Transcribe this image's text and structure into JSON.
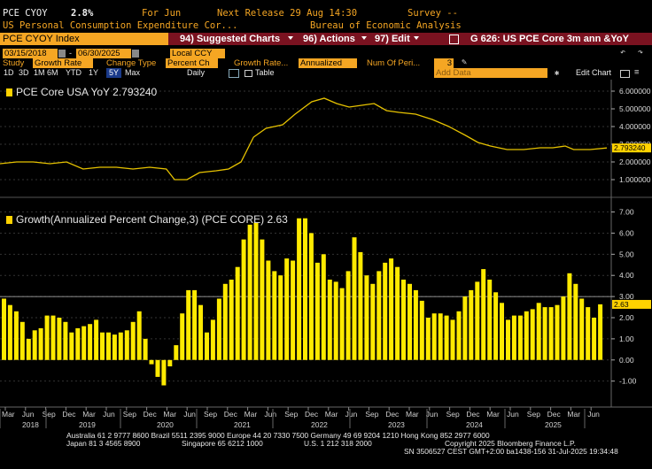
{
  "header": {
    "ticker": "PCE CYOY",
    "value": "2.8%",
    "period": "For Jun",
    "next_release": "Next Release 29 Aug 14:30",
    "survey": "Survey --",
    "description": "US Personal Consumption Expenditure Cor...",
    "source": "Bureau of Economic Analysis"
  },
  "titlebar": {
    "security": "PCE CYOY Index",
    "suggested": "94) Suggested Charts",
    "actions": "96) Actions",
    "edit": "97) Edit",
    "window_title": "G 626: US PCE Core 3m ann &YoY"
  },
  "controls": {
    "start_date": "03/15/2018",
    "end_date": "06/30/2025",
    "currency": "Local CCY",
    "study_label": "Study",
    "study_value": "Growth Rate",
    "change_type_label": "Change Type",
    "change_type_value": "Percent Ch",
    "growth_label": "Growth Rate...",
    "growth_value": "Annualized",
    "num_periods_label": "Num Of Peri...",
    "num_periods_value": "3",
    "ranges": [
      "1D",
      "3D",
      "1M",
      "6M",
      "YTD",
      "1Y",
      "5Y",
      "Max"
    ],
    "selected_range": "5Y",
    "frequency": "Daily",
    "table_label": "Table",
    "add_data": "Add Data",
    "edit_chart": "Edit Chart"
  },
  "colors": {
    "accent": "#f5a623",
    "series": "#ffd200",
    "titlebar": "#7a1220"
  },
  "chart_data": [
    {
      "type": "line",
      "legend": "PCE Core USA YoY 2.793240",
      "last_value_label": "2.793240",
      "y_ticks": [
        "6.000000",
        "5.000000",
        "4.000000",
        "3.000000",
        "2.000000",
        "1.000000"
      ],
      "ylim": [
        0.4,
        6.4
      ],
      "x_start": 2018.2,
      "x_end": 2025.5,
      "points": [
        [
          2018.2,
          1.9
        ],
        [
          2018.4,
          2.0
        ],
        [
          2018.6,
          2.0
        ],
        [
          2018.8,
          1.9
        ],
        [
          2019.0,
          2.0
        ],
        [
          2019.2,
          1.6
        ],
        [
          2019.4,
          1.7
        ],
        [
          2019.6,
          1.7
        ],
        [
          2019.8,
          1.6
        ],
        [
          2020.0,
          1.7
        ],
        [
          2020.2,
          1.6
        ],
        [
          2020.3,
          1.0
        ],
        [
          2020.45,
          1.0
        ],
        [
          2020.6,
          1.4
        ],
        [
          2020.8,
          1.5
        ],
        [
          2020.95,
          1.6
        ],
        [
          2021.1,
          2.0
        ],
        [
          2021.25,
          3.4
        ],
        [
          2021.4,
          3.9
        ],
        [
          2021.6,
          4.1
        ],
        [
          2021.75,
          4.7
        ],
        [
          2021.95,
          5.4
        ],
        [
          2022.1,
          5.6
        ],
        [
          2022.25,
          5.3
        ],
        [
          2022.4,
          5.1
        ],
        [
          2022.55,
          5.2
        ],
        [
          2022.7,
          5.3
        ],
        [
          2022.85,
          4.9
        ],
        [
          2023.0,
          4.8
        ],
        [
          2023.2,
          4.7
        ],
        [
          2023.4,
          4.4
        ],
        [
          2023.6,
          4.0
        ],
        [
          2023.8,
          3.5
        ],
        [
          2023.95,
          3.1
        ],
        [
          2024.1,
          2.9
        ],
        [
          2024.3,
          2.7
        ],
        [
          2024.5,
          2.7
        ],
        [
          2024.7,
          2.8
        ],
        [
          2024.85,
          2.8
        ],
        [
          2025.0,
          2.9
        ],
        [
          2025.1,
          2.7
        ],
        [
          2025.3,
          2.7
        ],
        [
          2025.5,
          2.79
        ]
      ]
    },
    {
      "type": "bar",
      "legend": "Growth(Annualized Percent Change,3) (PCE CORE) 2.63",
      "last_value_label": "2.63",
      "y_ticks": [
        "7.00",
        "6.00",
        "5.00",
        "4.00",
        "3.00",
        "2.00",
        "1.00",
        "0.00",
        "-1.00"
      ],
      "ylim": [
        -1.6,
        7.4
      ],
      "values": [
        2.9,
        2.6,
        2.3,
        1.8,
        1.0,
        1.4,
        1.5,
        2.1,
        2.1,
        2.0,
        1.8,
        1.3,
        1.5,
        1.6,
        1.7,
        1.9,
        1.3,
        1.3,
        1.2,
        1.3,
        1.4,
        1.8,
        2.3,
        1.0,
        -0.2,
        -0.8,
        -1.2,
        -0.3,
        0.7,
        2.2,
        3.3,
        3.3,
        2.6,
        1.3,
        1.9,
        2.9,
        3.6,
        3.8,
        4.4,
        5.7,
        6.4,
        6.5,
        5.7,
        4.7,
        4.2,
        4.0,
        4.8,
        4.7,
        6.7,
        6.7,
        6.0,
        4.6,
        5.0,
        3.8,
        3.7,
        3.4,
        4.2,
        5.8,
        5.1,
        4.0,
        3.6,
        4.2,
        4.6,
        4.8,
        4.4,
        3.8,
        3.6,
        3.3,
        2.8,
        2.0,
        2.2,
        2.2,
        2.1,
        1.9,
        2.3,
        3.0,
        3.3,
        3.7,
        4.3,
        3.8,
        3.2,
        2.7,
        1.9,
        2.1,
        2.1,
        2.3,
        2.4,
        2.7,
        2.5,
        2.5,
        2.6,
        3.0,
        4.1,
        3.6,
        2.9,
        2.5,
        2.0,
        2.63
      ]
    }
  ],
  "x_axis": {
    "month_labels": [
      "Mar",
      "Jun",
      "Sep",
      "Dec",
      "Mar",
      "Jun",
      "Sep",
      "Dec",
      "Mar",
      "Jun",
      "Sep",
      "Dec",
      "Mar",
      "Jun",
      "Sep",
      "Dec",
      "Mar",
      "Jun",
      "Sep",
      "Dec",
      "Mar",
      "Jun",
      "Sep",
      "Dec",
      "Mar",
      "Jun",
      "Sep",
      "Dec",
      "Mar",
      "Jun"
    ],
    "year_labels": [
      "2018",
      "2019",
      "2020",
      "2021",
      "2022",
      "2023",
      "2024",
      "2025"
    ]
  },
  "footer": {
    "line1": "Australia 61 2 9777 8600  Brazil 5511 2395 9000  Europe 44 20 7330 7500  Germany 49 69 9204 1210  Hong Kong 852 2977 6000",
    "line2a": "Japan 81 3 4565 8900",
    "line2b": "Singapore 65 6212 1000",
    "line2c": "U.S. 1 212 318 2000",
    "line2d": "Copyright 2025 Bloomberg Finance L.P.",
    "line3": "SN 3506527 CEST  GMT+2:00 ba1438-156 31-Jul-2025 19:34:48"
  }
}
